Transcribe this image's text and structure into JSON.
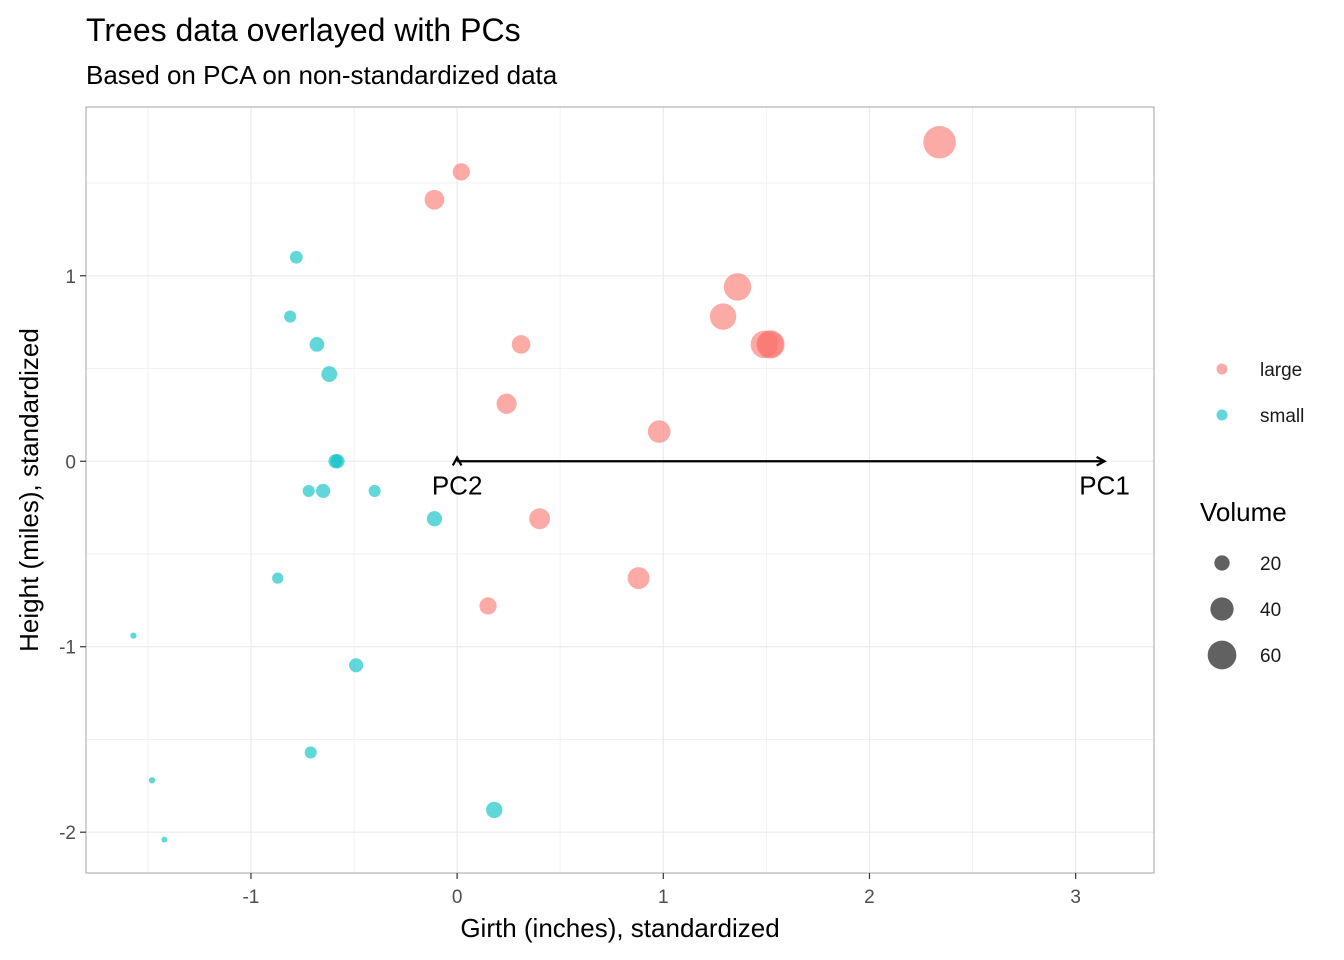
{
  "chart_data": {
    "type": "scatter",
    "title": "Trees data overlayed with PCs",
    "subtitle": "Based on PCA on non-standardized data",
    "xlabel": "Girth (inches), standardized",
    "ylabel": "Height (miles), standardized",
    "xlim": [
      -1.8,
      3.38
    ],
    "ylim": [
      -2.22,
      1.91
    ],
    "x_ticks": [
      -1,
      0,
      1,
      2,
      3
    ],
    "y_ticks": [
      -2,
      -1,
      0,
      1
    ],
    "x_tick_labels": [
      "-1",
      "0",
      "1",
      "2",
      "3"
    ],
    "y_tick_labels": [
      "-2",
      "-1",
      "0",
      "1"
    ],
    "grid": true,
    "legend_position": "right",
    "colors": {
      "large": "#F8766D",
      "small": "#00BFC4",
      "arrow": "#000000",
      "grid": "#ebebeb",
      "panel_border": "#b3b3b3"
    },
    "color_legend": {
      "entries": [
        "large",
        "small"
      ]
    },
    "size_legend": {
      "title": "Volume",
      "entries": [
        20,
        40,
        60
      ]
    },
    "series": [
      {
        "name": "large",
        "points": [
          {
            "x": 2.34,
            "y": 1.72,
            "volume": 77
          },
          {
            "x": 0.02,
            "y": 1.56,
            "volume": 24
          },
          {
            "x": -0.11,
            "y": 1.41,
            "volume": 30
          },
          {
            "x": 1.36,
            "y": 0.94,
            "volume": 55
          },
          {
            "x": 1.29,
            "y": 0.78,
            "volume": 51
          },
          {
            "x": 1.49,
            "y": 0.63,
            "volume": 55
          },
          {
            "x": 1.52,
            "y": 0.63,
            "volume": 58
          },
          {
            "x": 1.52,
            "y": 0.63,
            "volume": 51
          },
          {
            "x": 0.31,
            "y": 0.63,
            "volume": 27
          },
          {
            "x": 0.24,
            "y": 0.31,
            "volume": 31
          },
          {
            "x": 0.98,
            "y": 0.16,
            "volume": 38
          },
          {
            "x": 0.4,
            "y": -0.31,
            "volume": 33
          },
          {
            "x": 0.88,
            "y": -0.63,
            "volume": 36
          },
          {
            "x": 0.15,
            "y": -0.78,
            "volume": 24
          }
        ]
      },
      {
        "name": "small",
        "points": [
          {
            "x": -0.78,
            "y": 1.1,
            "volume": 16
          },
          {
            "x": -0.81,
            "y": 0.78,
            "volume": 15
          },
          {
            "x": -0.68,
            "y": 0.63,
            "volume": 19
          },
          {
            "x": -0.62,
            "y": 0.47,
            "volume": 21
          },
          {
            "x": -0.58,
            "y": 0.0,
            "volume": 18
          },
          {
            "x": -0.59,
            "y": 0.0,
            "volume": 18
          },
          {
            "x": -0.72,
            "y": -0.16,
            "volume": 15
          },
          {
            "x": -0.65,
            "y": -0.16,
            "volume": 18
          },
          {
            "x": -0.4,
            "y": -0.16,
            "volume": 15
          },
          {
            "x": -0.11,
            "y": -0.31,
            "volume": 20
          },
          {
            "x": -0.87,
            "y": -0.63,
            "volume": 14
          },
          {
            "x": -1.57,
            "y": -0.94,
            "volume": 10.3
          },
          {
            "x": -0.49,
            "y": -1.1,
            "volume": 18
          },
          {
            "x": -0.71,
            "y": -1.57,
            "volume": 15
          },
          {
            "x": -1.48,
            "y": -1.72,
            "volume": 10.3
          },
          {
            "x": -1.42,
            "y": -2.04,
            "volume": 10.2
          },
          {
            "x": 0.18,
            "y": -1.88,
            "volume": 22
          }
        ]
      }
    ],
    "pc_arrows": [
      {
        "label": "PC1",
        "from": [
          0,
          0
        ],
        "to": [
          3.14,
          0
        ]
      },
      {
        "label": "PC2",
        "from": [
          0,
          0
        ],
        "to": [
          0,
          0.02
        ]
      }
    ]
  }
}
